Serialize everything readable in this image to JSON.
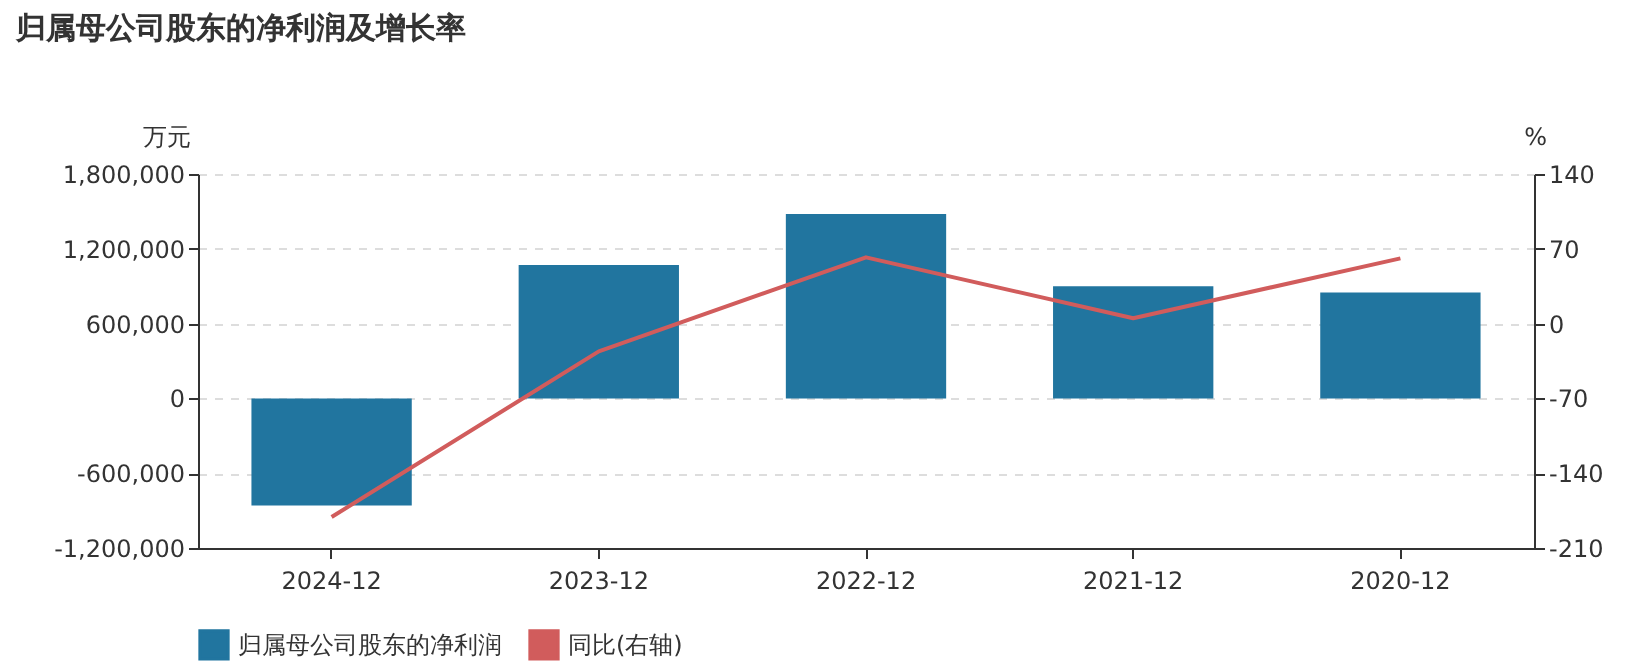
{
  "chart_data": {
    "type": "bar",
    "title": "归属母公司股东的净利润及增长率",
    "categories": [
      "2024-12",
      "2023-12",
      "2022-12",
      "2021-12",
      "2020-12"
    ],
    "series": [
      {
        "name": "归属母公司股东的净利润",
        "color": "#21759f",
        "values": [
          -860000,
          1070000,
          1480000,
          900000,
          850000
        ]
      },
      {
        "name": "同比(右轴)",
        "type": "line",
        "axis": "y2",
        "color": "#d15c5c",
        "values": [
          -181,
          -26,
          62,
          5,
          61
        ]
      }
    ],
    "ylabel": "万元",
    "y2label": "%",
    "ylim": [
      -1200000,
      1800000
    ],
    "yticks": [
      {
        "value": -1200000,
        "label": "-1,200,000"
      },
      {
        "value": -600000,
        "label": "-600,000"
      },
      0,
      {
        "value": 600000,
        "label": "600,000"
      },
      {
        "value": 1200000,
        "label": "1,200,000"
      },
      {
        "value": 1800000,
        "label": "1,800,000"
      }
    ],
    "y2lim": [
      -210,
      140
    ],
    "y2ticks": [
      -210,
      -140,
      -70,
      0,
      70,
      140
    ],
    "grid": "y",
    "legend": "bottom"
  }
}
